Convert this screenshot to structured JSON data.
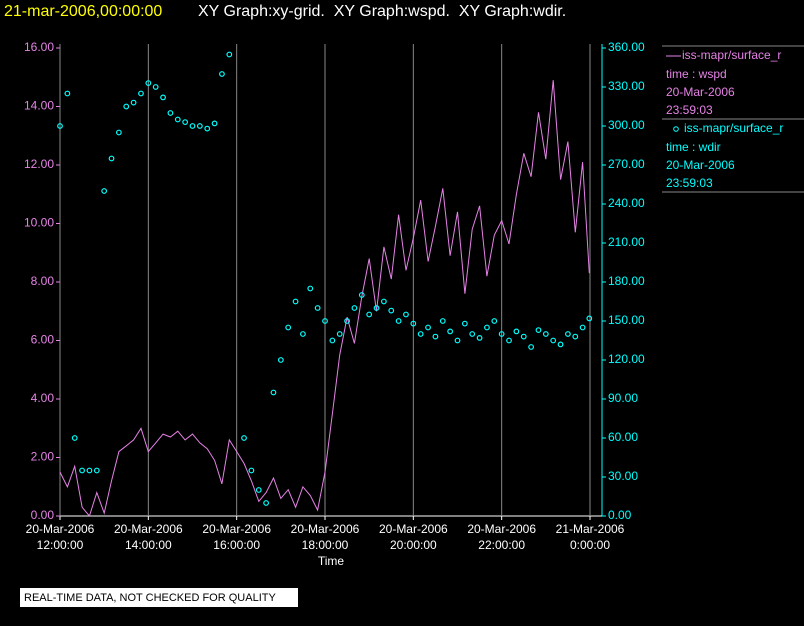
{
  "chart_data": {
    "type": "line",
    "title_time": "21-mar-2006,00:00:00",
    "title": "XY Graph:xy-grid.  XY Graph:wspd.  XY Graph:wdir.",
    "xlabel": "Time",
    "note": "REAL-TIME DATA, NOT CHECKED FOR QUALITY",
    "grid": true,
    "x": [
      "2006-03-20T12:00:00",
      "2006-03-20T12:10:00",
      "2006-03-20T12:20:00",
      "2006-03-20T12:30:00",
      "2006-03-20T12:40:00",
      "2006-03-20T12:50:00",
      "2006-03-20T13:00:00",
      "2006-03-20T13:10:00",
      "2006-03-20T13:20:00",
      "2006-03-20T13:30:00",
      "2006-03-20T13:40:00",
      "2006-03-20T13:50:00",
      "2006-03-20T14:00:00",
      "2006-03-20T14:10:00",
      "2006-03-20T14:20:00",
      "2006-03-20T14:30:00",
      "2006-03-20T14:40:00",
      "2006-03-20T14:50:00",
      "2006-03-20T15:00:00",
      "2006-03-20T15:10:00",
      "2006-03-20T15:20:00",
      "2006-03-20T15:30:00",
      "2006-03-20T15:40:00",
      "2006-03-20T15:50:00",
      "2006-03-20T16:00:00",
      "2006-03-20T16:10:00",
      "2006-03-20T16:20:00",
      "2006-03-20T16:30:00",
      "2006-03-20T16:40:00",
      "2006-03-20T16:50:00",
      "2006-03-20T17:00:00",
      "2006-03-20T17:10:00",
      "2006-03-20T17:20:00",
      "2006-03-20T17:30:00",
      "2006-03-20T17:40:00",
      "2006-03-20T17:50:00",
      "2006-03-20T18:00:00",
      "2006-03-20T18:10:00",
      "2006-03-20T18:20:00",
      "2006-03-20T18:30:00",
      "2006-03-20T18:40:00",
      "2006-03-20T18:50:00",
      "2006-03-20T19:00:00",
      "2006-03-20T19:10:00",
      "2006-03-20T19:20:00",
      "2006-03-20T19:30:00",
      "2006-03-20T19:40:00",
      "2006-03-20T19:50:00",
      "2006-03-20T20:00:00",
      "2006-03-20T20:10:00",
      "2006-03-20T20:20:00",
      "2006-03-20T20:30:00",
      "2006-03-20T20:40:00",
      "2006-03-20T20:50:00",
      "2006-03-20T21:00:00",
      "2006-03-20T21:10:00",
      "2006-03-20T21:20:00",
      "2006-03-20T21:30:00",
      "2006-03-20T21:40:00",
      "2006-03-20T21:50:00",
      "2006-03-20T22:00:00",
      "2006-03-20T22:10:00",
      "2006-03-20T22:20:00",
      "2006-03-20T22:30:00",
      "2006-03-20T22:40:00",
      "2006-03-20T22:50:00",
      "2006-03-20T23:00:00",
      "2006-03-20T23:10:00",
      "2006-03-20T23:20:00",
      "2006-03-20T23:30:00",
      "2006-03-20T23:40:00",
      "2006-03-20T23:50:00",
      "2006-03-20T23:59:03"
    ],
    "xlim": [
      "2006-03-20T12:00:00",
      "2006-03-21T00:00:00"
    ],
    "xticks": [
      {
        "value": "2006-03-20T12:00:00",
        "label": [
          "20-Mar-2006",
          "12:00:00"
        ]
      },
      {
        "value": "2006-03-20T14:00:00",
        "label": [
          "20-Mar-2006",
          "14:00:00"
        ]
      },
      {
        "value": "2006-03-20T16:00:00",
        "label": [
          "20-Mar-2006",
          "16:00:00"
        ]
      },
      {
        "value": "2006-03-20T18:00:00",
        "label": [
          "20-Mar-2006",
          "18:00:00"
        ]
      },
      {
        "value": "2006-03-20T20:00:00",
        "label": [
          "20-Mar-2006",
          "20:00:00"
        ]
      },
      {
        "value": "2006-03-20T22:00:00",
        "label": [
          "20-Mar-2006",
          "22:00:00"
        ]
      },
      {
        "value": "2006-03-21T00:00:00",
        "label": [
          "21-Mar-2006",
          "0:00:00"
        ]
      }
    ],
    "ylim": [
      0,
      16
    ],
    "yticks": [
      {
        "value": 0,
        "label": "0.00"
      },
      {
        "value": 2,
        "label": "2.00"
      },
      {
        "value": 4,
        "label": "4.00"
      },
      {
        "value": 6,
        "label": "6.00"
      },
      {
        "value": 8,
        "label": "8.00"
      },
      {
        "value": 10,
        "label": "10.00"
      },
      {
        "value": 12,
        "label": "12.00"
      },
      {
        "value": 14,
        "label": "14.00"
      },
      {
        "value": 16,
        "label": "16.00"
      }
    ],
    "y2lim": [
      0,
      360
    ],
    "y2ticks": [
      {
        "value": 0,
        "label": "0.00"
      },
      {
        "value": 30,
        "label": "30.00"
      },
      {
        "value": 60,
        "label": "60.00"
      },
      {
        "value": 90,
        "label": "90.00"
      },
      {
        "value": 120,
        "label": "120.00"
      },
      {
        "value": 150,
        "label": "150.00"
      },
      {
        "value": 180,
        "label": "180.00"
      },
      {
        "value": 210,
        "label": "210.00"
      },
      {
        "value": 240,
        "label": "240.00"
      },
      {
        "value": 270,
        "label": "270.00"
      },
      {
        "value": 300,
        "label": "300.00"
      },
      {
        "value": 330,
        "label": "330.00"
      },
      {
        "value": 360,
        "label": "360.00"
      }
    ],
    "series": [
      {
        "name": "iss-mapr/surface_r",
        "details": [
          "time : wspd",
          "20-Mar-2006",
          "23:59:03"
        ],
        "color": "#e682e6",
        "kind": "line",
        "values": [
          1.5,
          1.0,
          1.7,
          0.3,
          0.0,
          0.8,
          0.1,
          1.2,
          2.2,
          2.4,
          2.6,
          3.0,
          2.2,
          2.5,
          2.8,
          2.7,
          2.9,
          2.6,
          2.8,
          2.5,
          2.3,
          1.9,
          1.1,
          2.6,
          2.2,
          1.8,
          1.2,
          0.5,
          0.8,
          1.3,
          0.6,
          0.9,
          0.3,
          1.0,
          0.7,
          0.2,
          1.5,
          3.5,
          5.5,
          6.8,
          5.9,
          7.5,
          8.8,
          7.0,
          9.2,
          8.1,
          10.3,
          8.4,
          9.5,
          10.8,
          8.7,
          9.9,
          11.2,
          8.9,
          10.4,
          7.6,
          9.8,
          10.6,
          8.2,
          9.6,
          10.1,
          9.3,
          11.0,
          12.4,
          11.6,
          13.8,
          12.2,
          14.9,
          11.5,
          12.8,
          9.7,
          12.1,
          8.3
        ]
      },
      {
        "name": "iss-mapr/surface_r",
        "details": [
          "time : wdir",
          "20-Mar-2006",
          "23:59:03"
        ],
        "color": "#00ffff",
        "kind": "scatter",
        "axis": "y2",
        "values": [
          300,
          325,
          60,
          35,
          35,
          35,
          250,
          275,
          295,
          315,
          318,
          325,
          333,
          330,
          322,
          310,
          305,
          303,
          300,
          300,
          298,
          302,
          340,
          355,
          null,
          60,
          35,
          20,
          10,
          95,
          120,
          145,
          165,
          140,
          175,
          160,
          150,
          135,
          140,
          150,
          160,
          170,
          155,
          160,
          165,
          158,
          150,
          155,
          148,
          140,
          145,
          138,
          150,
          142,
          135,
          148,
          140,
          137,
          145,
          150,
          140,
          135,
          142,
          138,
          130,
          143,
          140,
          135,
          132,
          140,
          138,
          145,
          152
        ]
      }
    ]
  }
}
